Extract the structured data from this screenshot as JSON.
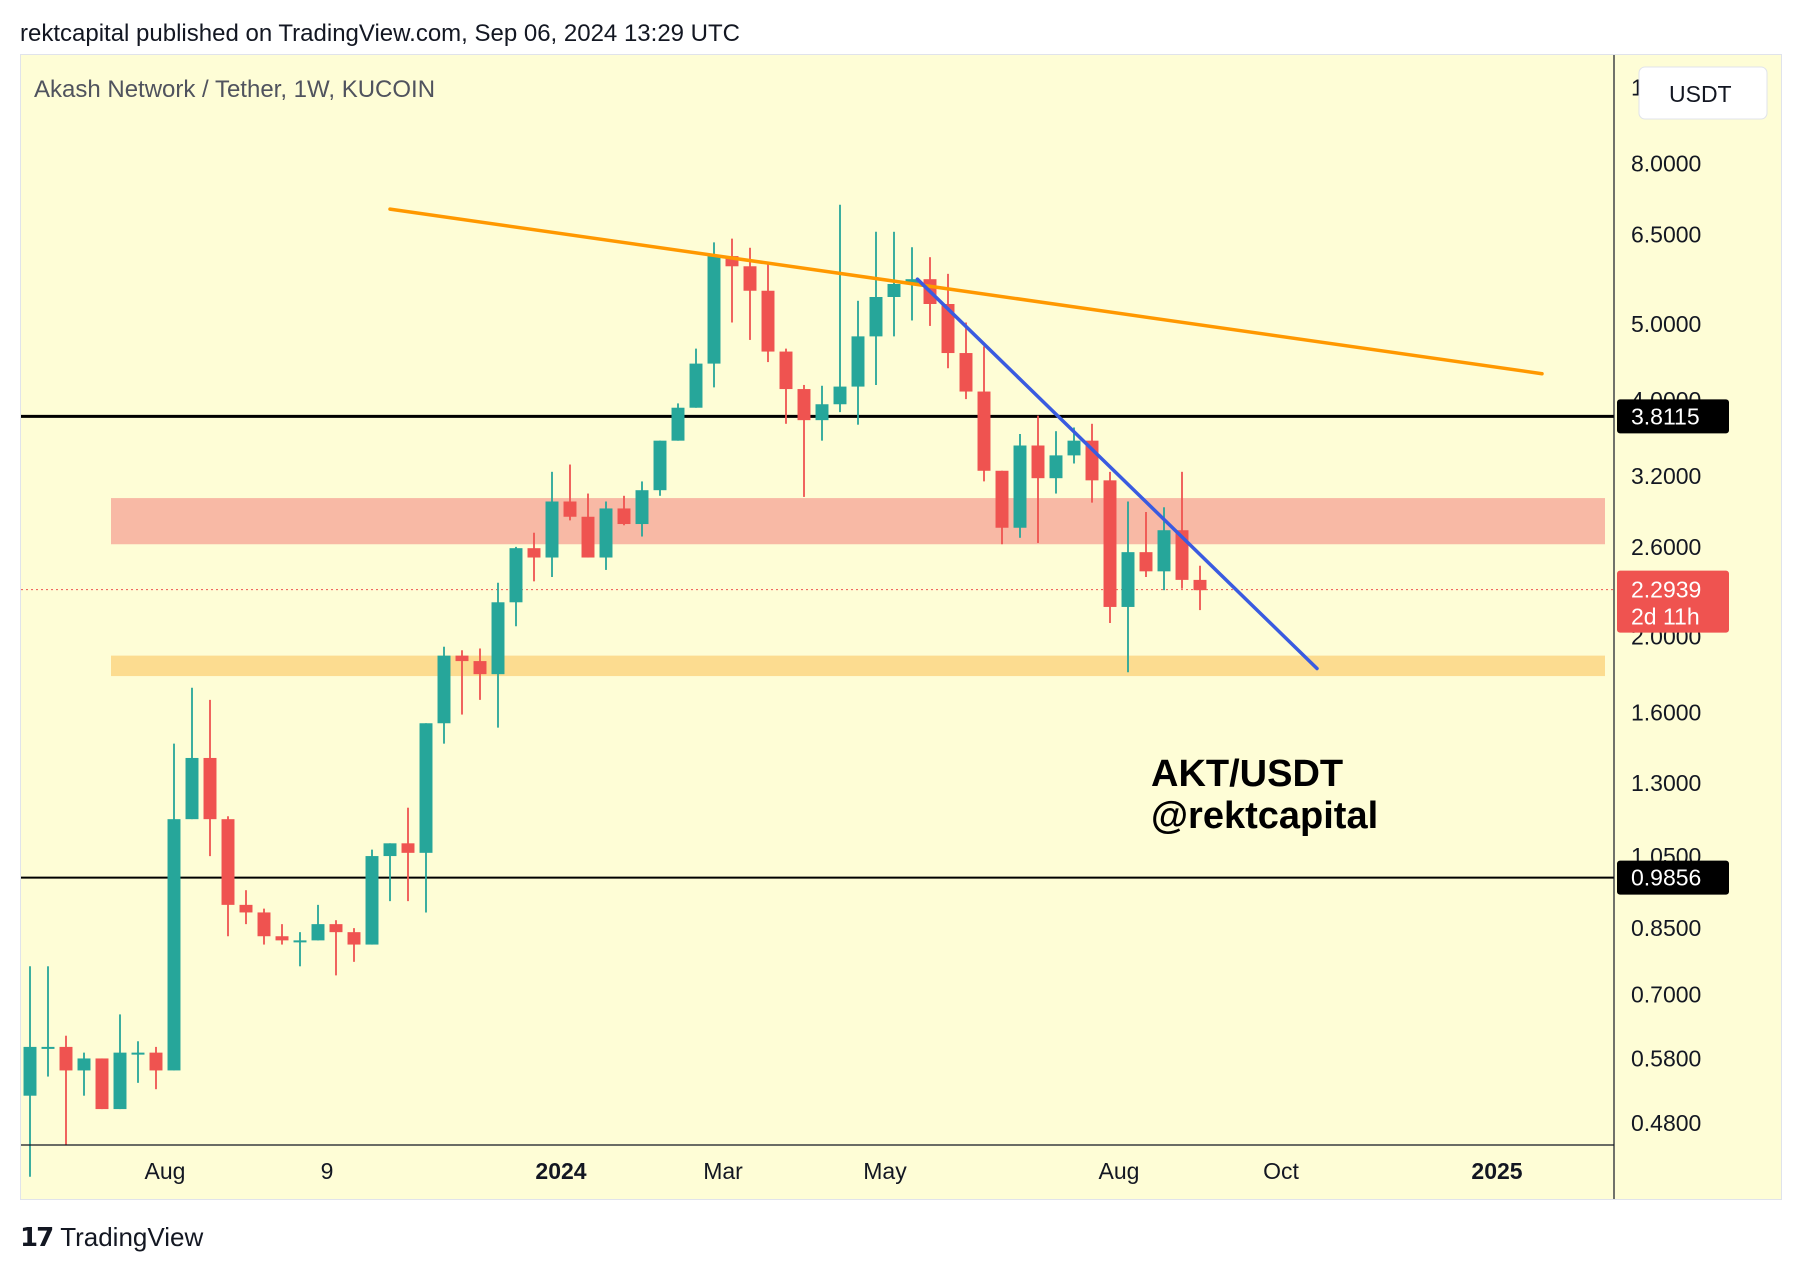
{
  "header": {
    "publish_line": "rektcapital published on TradingView.com, Sep 06, 2024 13:29 UTC"
  },
  "footer": {
    "brand": "TradingView",
    "logo_icon": "tradingview-logo-icon"
  },
  "colors": {
    "background": "#fefdd6",
    "bull": "#26a69a",
    "bear": "#ef5350",
    "resistance_zone": "#f8b9a5",
    "support_zone": "#fcdc90",
    "orange_line": "#ff9800",
    "blue_line": "#3a5be0",
    "black": "#000000"
  },
  "chart_data": {
    "type": "candlestick",
    "title": "Akash Network / Tether, 1W, KUCOIN",
    "currency_button": "USDT",
    "scale": "log",
    "ylim": [
      0.45,
      11.0
    ],
    "y_ticks": [
      "10.0000",
      "8.0000",
      "6.5000",
      "5.0000",
      "4.0000",
      "3.2000",
      "2.6000",
      "2.0000",
      "1.6000",
      "1.3000",
      "1.0500",
      "0.8500",
      "0.7000",
      "0.5800",
      "0.4800"
    ],
    "x_labels": [
      {
        "label": "Aug",
        "week": 7.5,
        "bold": false
      },
      {
        "label": "9",
        "week": 16.5,
        "bold": false
      },
      {
        "label": "2024",
        "week": 29.5,
        "bold": true
      },
      {
        "label": "Mar",
        "week": 38.5,
        "bold": false
      },
      {
        "label": "May",
        "week": 47.5,
        "bold": false
      },
      {
        "label": "Aug",
        "week": 60.5,
        "bold": false
      },
      {
        "label": "Oct",
        "week": 69.5,
        "bold": false
      },
      {
        "label": "2025",
        "week": 81.5,
        "bold": true
      }
    ],
    "x_range_weeks": [
      -0.5,
      88
    ],
    "candles": [
      {
        "o": 0.52,
        "h": 0.76,
        "l": 0.41,
        "c": 0.6
      },
      {
        "o": 0.6,
        "h": 0.76,
        "l": 0.55,
        "c": 0.6
      },
      {
        "o": 0.6,
        "h": 0.62,
        "l": 0.45,
        "c": 0.56
      },
      {
        "o": 0.56,
        "h": 0.59,
        "l": 0.52,
        "c": 0.58
      },
      {
        "o": 0.58,
        "h": 0.58,
        "l": 0.5,
        "c": 0.5
      },
      {
        "o": 0.5,
        "h": 0.66,
        "l": 0.5,
        "c": 0.59
      },
      {
        "o": 0.59,
        "h": 0.61,
        "l": 0.54,
        "c": 0.59
      },
      {
        "o": 0.59,
        "h": 0.6,
        "l": 0.53,
        "c": 0.56
      },
      {
        "o": 0.56,
        "h": 1.46,
        "l": 0.56,
        "c": 1.17
      },
      {
        "o": 1.17,
        "h": 1.72,
        "l": 1.17,
        "c": 1.4
      },
      {
        "o": 1.4,
        "h": 1.66,
        "l": 1.05,
        "c": 1.17
      },
      {
        "o": 1.17,
        "h": 1.18,
        "l": 0.83,
        "c": 0.91
      },
      {
        "o": 0.91,
        "h": 0.95,
        "l": 0.86,
        "c": 0.89
      },
      {
        "o": 0.89,
        "h": 0.9,
        "l": 0.81,
        "c": 0.83
      },
      {
        "o": 0.83,
        "h": 0.86,
        "l": 0.81,
        "c": 0.82
      },
      {
        "o": 0.82,
        "h": 0.84,
        "l": 0.76,
        "c": 0.82
      },
      {
        "o": 0.82,
        "h": 0.91,
        "l": 0.82,
        "c": 0.86
      },
      {
        "o": 0.86,
        "h": 0.87,
        "l": 0.74,
        "c": 0.84
      },
      {
        "o": 0.84,
        "h": 0.85,
        "l": 0.77,
        "c": 0.81
      },
      {
        "o": 0.81,
        "h": 1.07,
        "l": 0.81,
        "c": 1.05
      },
      {
        "o": 1.05,
        "h": 1.09,
        "l": 0.92,
        "c": 1.09
      },
      {
        "o": 1.09,
        "h": 1.21,
        "l": 0.92,
        "c": 1.06
      },
      {
        "o": 1.06,
        "h": 1.55,
        "l": 0.89,
        "c": 1.55
      },
      {
        "o": 1.55,
        "h": 1.94,
        "l": 1.46,
        "c": 1.89
      },
      {
        "o": 1.89,
        "h": 1.92,
        "l": 1.59,
        "c": 1.86
      },
      {
        "o": 1.86,
        "h": 1.93,
        "l": 1.66,
        "c": 1.79
      },
      {
        "o": 1.79,
        "h": 2.34,
        "l": 1.53,
        "c": 2.21
      },
      {
        "o": 2.21,
        "h": 2.6,
        "l": 2.06,
        "c": 2.59
      },
      {
        "o": 2.59,
        "h": 2.71,
        "l": 2.35,
        "c": 2.52
      },
      {
        "o": 2.52,
        "h": 3.24,
        "l": 2.38,
        "c": 2.97
      },
      {
        "o": 2.97,
        "h": 3.31,
        "l": 2.81,
        "c": 2.84
      },
      {
        "o": 2.84,
        "h": 3.04,
        "l": 2.52,
        "c": 2.52
      },
      {
        "o": 2.52,
        "h": 2.97,
        "l": 2.43,
        "c": 2.91
      },
      {
        "o": 2.91,
        "h": 3.02,
        "l": 2.77,
        "c": 2.78
      },
      {
        "o": 2.78,
        "h": 3.15,
        "l": 2.68,
        "c": 3.07
      },
      {
        "o": 3.07,
        "h": 3.55,
        "l": 3.02,
        "c": 3.55
      },
      {
        "o": 3.55,
        "h": 3.96,
        "l": 3.55,
        "c": 3.91
      },
      {
        "o": 3.91,
        "h": 4.65,
        "l": 3.91,
        "c": 4.45
      },
      {
        "o": 4.45,
        "h": 6.35,
        "l": 4.15,
        "c": 6.1
      },
      {
        "o": 6.1,
        "h": 6.42,
        "l": 5.02,
        "c": 5.92
      },
      {
        "o": 5.92,
        "h": 6.25,
        "l": 4.77,
        "c": 5.51
      },
      {
        "o": 5.51,
        "h": 5.99,
        "l": 4.47,
        "c": 4.61
      },
      {
        "o": 4.61,
        "h": 4.65,
        "l": 3.73,
        "c": 4.13
      },
      {
        "o": 4.13,
        "h": 4.18,
        "l": 3.01,
        "c": 3.77
      },
      {
        "o": 3.77,
        "h": 4.17,
        "l": 3.55,
        "c": 3.95
      },
      {
        "o": 3.95,
        "h": 7.09,
        "l": 3.86,
        "c": 4.16
      },
      {
        "o": 4.16,
        "h": 5.35,
        "l": 3.72,
        "c": 4.82
      },
      {
        "o": 4.82,
        "h": 6.55,
        "l": 4.18,
        "c": 5.41
      },
      {
        "o": 5.41,
        "h": 6.55,
        "l": 4.82,
        "c": 5.62
      },
      {
        "o": 5.62,
        "h": 6.26,
        "l": 5.05,
        "c": 5.7
      },
      {
        "o": 5.7,
        "h": 6.08,
        "l": 4.97,
        "c": 5.3
      },
      {
        "o": 5.3,
        "h": 5.79,
        "l": 4.39,
        "c": 4.59
      },
      {
        "o": 4.59,
        "h": 5.02,
        "l": 4.01,
        "c": 4.1
      },
      {
        "o": 4.1,
        "h": 4.68,
        "l": 3.15,
        "c": 3.25
      },
      {
        "o": 3.25,
        "h": 3.25,
        "l": 2.62,
        "c": 2.75
      },
      {
        "o": 2.75,
        "h": 3.62,
        "l": 2.67,
        "c": 3.5
      },
      {
        "o": 3.5,
        "h": 3.82,
        "l": 2.63,
        "c": 3.18
      },
      {
        "o": 3.18,
        "h": 3.65,
        "l": 3.04,
        "c": 3.4
      },
      {
        "o": 3.4,
        "h": 3.69,
        "l": 3.32,
        "c": 3.55
      },
      {
        "o": 3.55,
        "h": 3.73,
        "l": 2.96,
        "c": 3.16
      },
      {
        "o": 3.16,
        "h": 3.24,
        "l": 2.08,
        "c": 2.18
      },
      {
        "o": 2.18,
        "h": 2.97,
        "l": 1.8,
        "c": 2.56
      },
      {
        "o": 2.56,
        "h": 2.88,
        "l": 2.38,
        "c": 2.42
      },
      {
        "o": 2.42,
        "h": 2.92,
        "l": 2.29,
        "c": 2.73
      },
      {
        "o": 2.73,
        "h": 3.24,
        "l": 2.3,
        "c": 2.36
      },
      {
        "o": 2.36,
        "h": 2.46,
        "l": 2.16,
        "c": 2.29
      }
    ],
    "annotations": {
      "zones": [
        {
          "name": "resistance",
          "low": 2.62,
          "high": 3.0,
          "week_from": 4.5,
          "week_to": 87.5
        },
        {
          "name": "support",
          "low": 1.78,
          "high": 1.89,
          "week_from": 4.5,
          "week_to": 87.5
        }
      ],
      "levels": [
        {
          "name": "upper",
          "value": 3.8115,
          "label": "3.8115"
        },
        {
          "name": "lower",
          "value": 0.9856,
          "label": "0.9856"
        }
      ],
      "trendlines": [
        {
          "name": "orange",
          "points": [
            [
              20,
              7.0
            ],
            [
              84,
              4.32
            ]
          ]
        },
        {
          "name": "blue",
          "points": [
            [
              49.3,
              5.7
            ],
            [
              71.5,
              1.82
            ]
          ]
        }
      ],
      "current_price": {
        "value": 2.2939,
        "label": "2.2939",
        "countdown": "2d 11h"
      },
      "watermark": {
        "line1": "AKT/USDT",
        "line2": "@rektcapital"
      }
    }
  }
}
